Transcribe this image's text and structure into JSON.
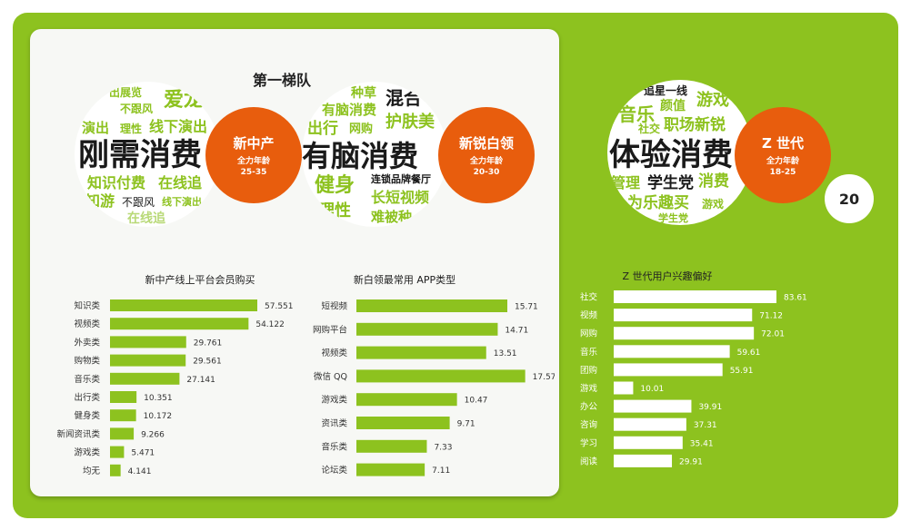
{
  "tier_title": "第一梯队",
  "page_number": "20",
  "colors": {
    "green": "#8dc21f",
    "orange": "#e85d0d",
    "white": "#ffffff"
  },
  "personas": [
    {
      "name": "新中产",
      "age_label": "全力年龄",
      "age_range": "25-35",
      "cloud_main": "刚需消费",
      "cloud_words": [
        "出展览",
        "爱龙",
        "不跟风",
        "演出",
        "理性",
        "线下演出",
        "知识付费",
        "在线追",
        "知游",
        "不跟风",
        "线下演出",
        "在线追"
      ]
    },
    {
      "name": "新锐白领",
      "age_label": "全力年龄",
      "age_range": "20-30",
      "cloud_main": "有脑消费",
      "cloud_words": [
        "种草",
        "混合",
        "有脑消费",
        "出行",
        "网购",
        "护肤美",
        "网购",
        "种草",
        "健身",
        "连锁品牌餐厅",
        "长短视频",
        "理性",
        "难被种"
      ]
    },
    {
      "name": "Z 世代",
      "age_label": "全力年龄",
      "age_range": "18-25",
      "cloud_main": "体验消费",
      "cloud_words": [
        "追星一线",
        "音乐",
        "颜值",
        "游戏",
        "社交",
        "职场新锐",
        "管理",
        "学生党",
        "消费",
        "为乐趣买",
        "游戏",
        "学生党"
      ]
    }
  ],
  "chart_data": [
    {
      "type": "bar",
      "title": "新中产线上平台会员购买",
      "categories": [
        "知识类",
        "视频类",
        "外卖类",
        "购物类",
        "音乐类",
        "出行类",
        "健身类",
        "新闻资讯类",
        "游戏类",
        "均无"
      ],
      "values": [
        57.551,
        54.122,
        29.761,
        29.561,
        27.141,
        10.351,
        10.172,
        9.266,
        5.471,
        4.141
      ],
      "labels": [
        "57.551",
        "54.122",
        "29.761",
        "29.561",
        "27.141",
        "10.351",
        "10.172",
        "9.266",
        "5.471",
        "4.141"
      ],
      "bar_color": "#8dc21f"
    },
    {
      "type": "bar",
      "title": "新白领最常用 APP类型",
      "categories": [
        "短视频",
        "网购平台",
        "视频类",
        "微信 QQ",
        "游戏类",
        "资讯类",
        "音乐类",
        "论坛类"
      ],
      "values": [
        15.71,
        14.71,
        13.51,
        17.57,
        10.47,
        9.71,
        7.33,
        7.11
      ],
      "labels": [
        "15.71",
        "14.71",
        "13.51",
        "17.57",
        "10.47",
        "9.71",
        "7.33",
        "7.11"
      ],
      "bar_color": "#8dc21f"
    },
    {
      "type": "bar",
      "title": "Z 世代用户兴趣偏好",
      "categories": [
        "社交",
        "视频",
        "网购",
        "音乐",
        "团购",
        "游戏",
        "办公",
        "咨询",
        "学习",
        "阅读"
      ],
      "values": [
        83.61,
        71.12,
        72.01,
        59.61,
        55.91,
        10.01,
        39.91,
        37.31,
        35.41,
        29.91
      ],
      "labels": [
        "83.61",
        "71.12",
        "72.01",
        "59.61",
        "55.91",
        "10.01",
        "39.91",
        "37.31",
        "35.41",
        "29.91"
      ],
      "bar_color": "#ffffff"
    }
  ]
}
